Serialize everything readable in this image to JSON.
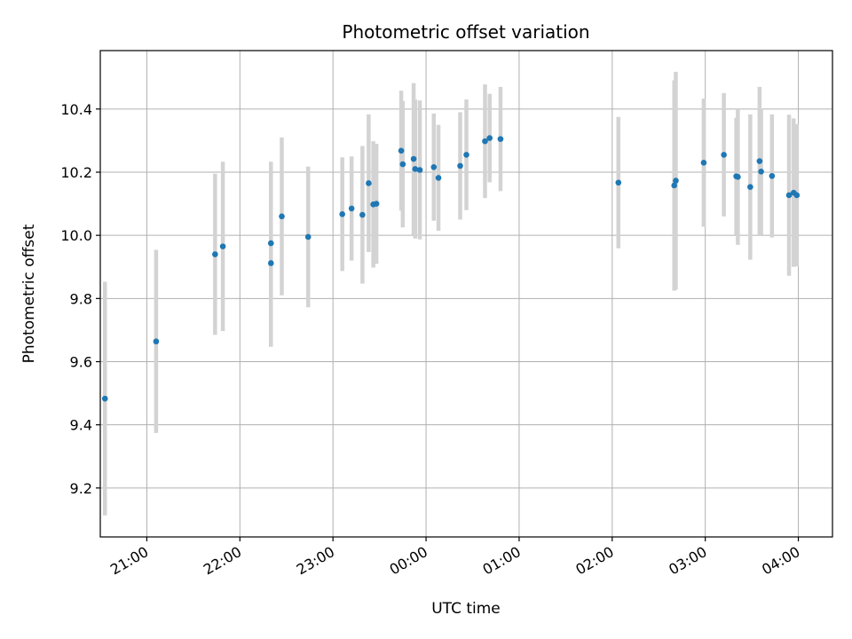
{
  "chart_data": {
    "type": "scatter",
    "title": "Photometric offset variation",
    "xlabel": "UTC time",
    "ylabel": "Photometric offset",
    "x_unit": "UTC time (HH:MM)",
    "x_ticks": [
      "21:00",
      "22:00",
      "23:00",
      "00:00",
      "01:00",
      "02:00",
      "03:00",
      "04:00"
    ],
    "y_ticks": [
      "9.2",
      "9.4",
      "9.6",
      "9.8",
      "10.0",
      "10.2",
      "10.4"
    ],
    "xlim": [
      "20:30",
      "04:22"
    ],
    "ylim": [
      9.045,
      10.585
    ],
    "grid": true,
    "colors": {
      "point": "#1f77b4",
      "errorbar": "#d3d3d3",
      "grid": "#b0b0b0",
      "axes": "#000000"
    },
    "series": [
      {
        "points": [
          {
            "x": "20:33",
            "y": 9.483,
            "err": 0.37
          },
          {
            "x": "21:06",
            "y": 9.664,
            "err": 0.29
          },
          {
            "x": "21:44",
            "y": 9.94,
            "err": 0.255
          },
          {
            "x": "21:49",
            "y": 9.965,
            "err": 0.268
          },
          {
            "x": "22:20",
            "y": 9.912,
            "err": 0.265
          },
          {
            "x": "22:20",
            "y": 9.975,
            "err": 0.258
          },
          {
            "x": "22:27",
            "y": 10.06,
            "err": 0.25
          },
          {
            "x": "22:44",
            "y": 9.995,
            "err": 0.223
          },
          {
            "x": "23:06",
            "y": 10.067,
            "err": 0.18
          },
          {
            "x": "23:12",
            "y": 10.085,
            "err": 0.165
          },
          {
            "x": "23:19",
            "y": 10.065,
            "err": 0.218
          },
          {
            "x": "23:23",
            "y": 10.165,
            "err": 0.218
          },
          {
            "x": "23:26",
            "y": 10.098,
            "err": 0.2
          },
          {
            "x": "23:28",
            "y": 10.1,
            "err": 0.19
          },
          {
            "x": "23:44",
            "y": 10.268,
            "err": 0.19
          },
          {
            "x": "23:45",
            "y": 10.225,
            "err": 0.2
          },
          {
            "x": "23:52",
            "y": 10.242,
            "err": 0.24
          },
          {
            "x": "23:53",
            "y": 10.21,
            "err": 0.22
          },
          {
            "x": "23:56",
            "y": 10.207,
            "err": 0.22
          },
          {
            "x": "00:05",
            "y": 10.216,
            "err": 0.17
          },
          {
            "x": "00:08",
            "y": 10.182,
            "err": 0.168
          },
          {
            "x": "00:22",
            "y": 10.22,
            "err": 0.17
          },
          {
            "x": "00:26",
            "y": 10.255,
            "err": 0.175
          },
          {
            "x": "00:38",
            "y": 10.298,
            "err": 0.18
          },
          {
            "x": "00:41",
            "y": 10.308,
            "err": 0.14
          },
          {
            "x": "00:48",
            "y": 10.305,
            "err": 0.165
          },
          {
            "x": "02:04",
            "y": 10.167,
            "err": 0.208
          },
          {
            "x": "02:40",
            "y": 10.158,
            "err": 0.333
          },
          {
            "x": "02:41",
            "y": 10.173,
            "err": 0.345
          },
          {
            "x": "02:59",
            "y": 10.23,
            "err": 0.203
          },
          {
            "x": "03:12",
            "y": 10.255,
            "err": 0.195
          },
          {
            "x": "03:20",
            "y": 10.187,
            "err": 0.185
          },
          {
            "x": "03:21",
            "y": 10.185,
            "err": 0.215
          },
          {
            "x": "03:29",
            "y": 10.153,
            "err": 0.23
          },
          {
            "x": "03:35",
            "y": 10.235,
            "err": 0.235
          },
          {
            "x": "03:36",
            "y": 10.202,
            "err": 0.2
          },
          {
            "x": "03:43",
            "y": 10.188,
            "err": 0.195
          },
          {
            "x": "03:54",
            "y": 10.127,
            "err": 0.255
          },
          {
            "x": "03:57",
            "y": 10.135,
            "err": 0.235
          },
          {
            "x": "03:59",
            "y": 10.127,
            "err": 0.225
          }
        ]
      }
    ]
  }
}
